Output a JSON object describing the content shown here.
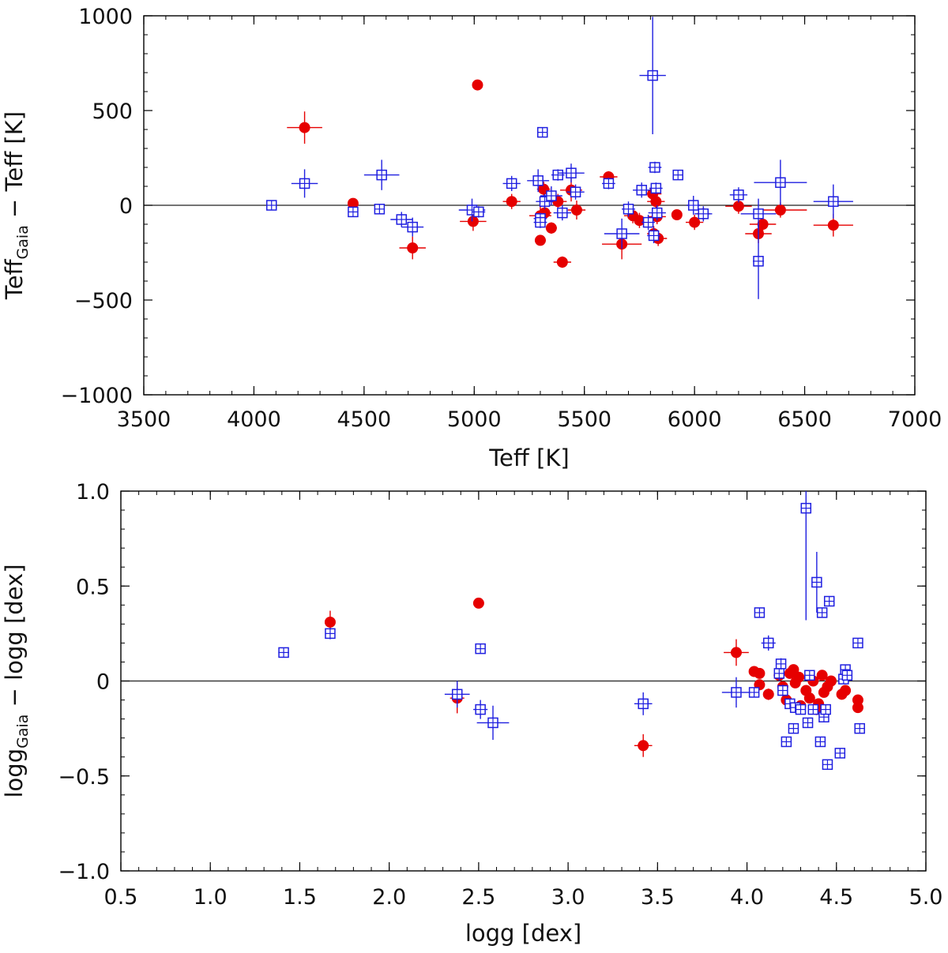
{
  "colors": {
    "red_series": "#e60000",
    "blue_series": "#1f1fe0",
    "axis": "#000000"
  },
  "chart_data": [
    {
      "type": "scatter",
      "xlabel": "Teff  [K]",
      "ylabel_main": "Teff",
      "ylabel_sub": "Gaia",
      "ylabel_tail": " − Teff  [K]",
      "xlim": [
        3500,
        7000
      ],
      "ylim": [
        -1000,
        1000
      ],
      "xticks": [
        3500,
        4000,
        4500,
        5000,
        5500,
        6000,
        6500,
        7000
      ],
      "xtick_labels": [
        "3500",
        "4000",
        "4500",
        "5000",
        "5500",
        "6000",
        "6500",
        "7000"
      ],
      "yticks": [
        -1000,
        -500,
        0,
        500,
        1000
      ],
      "ytick_labels": [
        "−1000",
        "−500",
        "0",
        "500",
        "1000"
      ],
      "x_minor_step": 100,
      "y_minor_step": 100,
      "zero_line": 0,
      "series": [
        {
          "name": "red filled circles",
          "marker": "filled-circle",
          "points": [
            {
              "x": 4230,
              "y": 410,
              "ex": 80,
              "ey": 85
            },
            {
              "x": 5015,
              "y": 635,
              "ex": 15,
              "ey": 15
            },
            {
              "x": 4450,
              "y": 10,
              "ex": 20,
              "ey": 20
            },
            {
              "x": 4720,
              "y": -225,
              "ex": 60,
              "ey": 60
            },
            {
              "x": 4995,
              "y": -85,
              "ex": 60,
              "ey": 50
            },
            {
              "x": 5170,
              "y": 20,
              "ex": 40,
              "ey": 40
            },
            {
              "x": 5300,
              "y": -185,
              "ex": 25,
              "ey": 25
            },
            {
              "x": 5300,
              "y": -55,
              "ex": 50,
              "ey": 50
            },
            {
              "x": 5315,
              "y": 85,
              "ex": 30,
              "ey": 40
            },
            {
              "x": 5320,
              "y": -40,
              "ex": 30,
              "ey": 30
            },
            {
              "x": 5350,
              "y": -120,
              "ex": 25,
              "ey": 30
            },
            {
              "x": 5380,
              "y": 20,
              "ex": 40,
              "ey": 40
            },
            {
              "x": 5400,
              "y": -300,
              "ex": 40,
              "ey": 30
            },
            {
              "x": 5440,
              "y": 80,
              "ex": 50,
              "ey": 60
            },
            {
              "x": 5465,
              "y": -25,
              "ex": 40,
              "ey": 50
            },
            {
              "x": 5610,
              "y": 150,
              "ex": 40,
              "ey": 30
            },
            {
              "x": 5670,
              "y": -205,
              "ex": 90,
              "ey": 80
            },
            {
              "x": 5720,
              "y": -55,
              "ex": 40,
              "ey": 40
            },
            {
              "x": 5750,
              "y": -80,
              "ex": 40,
              "ey": 40
            },
            {
              "x": 5810,
              "y": 60,
              "ex": 40,
              "ey": 40
            },
            {
              "x": 5815,
              "y": -150,
              "ex": 30,
              "ey": 40
            },
            {
              "x": 5825,
              "y": 20,
              "ex": 40,
              "ey": 40
            },
            {
              "x": 5830,
              "y": -60,
              "ex": 40,
              "ey": 40
            },
            {
              "x": 5835,
              "y": -175,
              "ex": 40,
              "ey": 40
            },
            {
              "x": 5920,
              "y": -50,
              "ex": 20,
              "ey": 20
            },
            {
              "x": 6000,
              "y": -90,
              "ex": 40,
              "ey": 40
            },
            {
              "x": 6040,
              "y": -45,
              "ex": 30,
              "ey": 30
            },
            {
              "x": 6200,
              "y": -5,
              "ex": 60,
              "ey": 40
            },
            {
              "x": 6290,
              "y": -150,
              "ex": 60,
              "ey": 50
            },
            {
              "x": 6310,
              "y": -100,
              "ex": 60,
              "ey": 50
            },
            {
              "x": 6390,
              "y": -25,
              "ex": 120,
              "ey": 40
            },
            {
              "x": 6630,
              "y": -105,
              "ex": 90,
              "ey": 60
            }
          ]
        },
        {
          "name": "blue open squares",
          "marker": "open-square",
          "points": [
            {
              "x": 4080,
              "y": 0,
              "ex": 15,
              "ey": 15
            },
            {
              "x": 4230,
              "y": 115,
              "ex": 60,
              "ey": 75
            },
            {
              "x": 4450,
              "y": -35,
              "ex": 20,
              "ey": 20
            },
            {
              "x": 4570,
              "y": -20,
              "ex": 20,
              "ey": 20
            },
            {
              "x": 4580,
              "y": 160,
              "ex": 80,
              "ey": 80
            },
            {
              "x": 4670,
              "y": -75,
              "ex": 50,
              "ey": 40
            },
            {
              "x": 4720,
              "y": -115,
              "ex": 50,
              "ey": 50
            },
            {
              "x": 4990,
              "y": -25,
              "ex": 60,
              "ey": 60
            },
            {
              "x": 5020,
              "y": -35,
              "ex": 30,
              "ey": 30
            },
            {
              "x": 5170,
              "y": 115,
              "ex": 40,
              "ey": 40
            },
            {
              "x": 5290,
              "y": 130,
              "ex": 50,
              "ey": 60
            },
            {
              "x": 5300,
              "y": -70,
              "ex": 30,
              "ey": 30
            },
            {
              "x": 5300,
              "y": -90,
              "ex": 30,
              "ey": 30
            },
            {
              "x": 5310,
              "y": 385,
              "ex": 15,
              "ey": 20
            },
            {
              "x": 5320,
              "y": 20,
              "ex": 40,
              "ey": 40
            },
            {
              "x": 5350,
              "y": 50,
              "ex": 50,
              "ey": 50
            },
            {
              "x": 5380,
              "y": 160,
              "ex": 30,
              "ey": 30
            },
            {
              "x": 5400,
              "y": -40,
              "ex": 40,
              "ey": 40
            },
            {
              "x": 5440,
              "y": 170,
              "ex": 60,
              "ey": 50
            },
            {
              "x": 5460,
              "y": 70,
              "ex": 40,
              "ey": 40
            },
            {
              "x": 5610,
              "y": 115,
              "ex": 30,
              "ey": 30
            },
            {
              "x": 5670,
              "y": -150,
              "ex": 80,
              "ey": 80
            },
            {
              "x": 5700,
              "y": -20,
              "ex": 30,
              "ey": 40
            },
            {
              "x": 5760,
              "y": 80,
              "ex": 40,
              "ey": 40
            },
            {
              "x": 5790,
              "y": -90,
              "ex": 30,
              "ey": 40
            },
            {
              "x": 5810,
              "y": 685,
              "ex": 60,
              "ey": 310
            },
            {
              "x": 5815,
              "y": -160,
              "ex": 30,
              "ey": 40
            },
            {
              "x": 5820,
              "y": 200,
              "ex": 30,
              "ey": 30
            },
            {
              "x": 5825,
              "y": 90,
              "ex": 30,
              "ey": 30
            },
            {
              "x": 5830,
              "y": -40,
              "ex": 40,
              "ey": 40
            },
            {
              "x": 5925,
              "y": 160,
              "ex": 20,
              "ey": 20
            },
            {
              "x": 5995,
              "y": 0,
              "ex": 30,
              "ey": 50
            },
            {
              "x": 6040,
              "y": -45,
              "ex": 40,
              "ey": 40
            },
            {
              "x": 6200,
              "y": 55,
              "ex": 40,
              "ey": 40
            },
            {
              "x": 6290,
              "y": -45,
              "ex": 80,
              "ey": 80
            },
            {
              "x": 6290,
              "y": -295,
              "ex": 25,
              "ey": 200
            },
            {
              "x": 6390,
              "y": 120,
              "ex": 120,
              "ey": 120
            },
            {
              "x": 6630,
              "y": 20,
              "ex": 90,
              "ey": 90
            }
          ]
        }
      ]
    },
    {
      "type": "scatter",
      "xlabel": "logg  [dex]",
      "ylabel_main": "logg",
      "ylabel_sub": "Gaia",
      "ylabel_tail": " − logg  [dex]",
      "xlim": [
        0.5,
        5.0
      ],
      "ylim": [
        -1.0,
        1.0
      ],
      "xticks": [
        0.5,
        1.0,
        1.5,
        2.0,
        2.5,
        3.0,
        3.5,
        4.0,
        4.5,
        5.0
      ],
      "xtick_labels": [
        "0.5",
        "1.0",
        "1.5",
        "2.0",
        "2.5",
        "3.0",
        "3.5",
        "4.0",
        "4.5",
        "5.0"
      ],
      "yticks": [
        -1.0,
        -0.5,
        0,
        0.5,
        1.0
      ],
      "ytick_labels": [
        "−1.0",
        "−0.5",
        "0",
        "0.5",
        "1.0"
      ],
      "x_minor_step": 0.1,
      "y_minor_step": 0.1,
      "zero_line": 0,
      "series": [
        {
          "name": "red filled circles",
          "marker": "filled-circle",
          "points": [
            {
              "x": 1.67,
              "y": 0.31,
              "ex": 0.02,
              "ey": 0.06
            },
            {
              "x": 2.38,
              "y": -0.09,
              "ex": 0.04,
              "ey": 0.08
            },
            {
              "x": 2.5,
              "y": 0.41,
              "ex": 0.02,
              "ey": 0.02
            },
            {
              "x": 3.42,
              "y": -0.34,
              "ex": 0.05,
              "ey": 0.06
            },
            {
              "x": 3.94,
              "y": 0.15,
              "ex": 0.07,
              "ey": 0.07
            },
            {
              "x": 4.04,
              "y": 0.05,
              "ex": 0.02,
              "ey": 0.02
            },
            {
              "x": 4.07,
              "y": 0.04,
              "ex": 0.02,
              "ey": 0.02
            },
            {
              "x": 4.07,
              "y": -0.02,
              "ex": 0.02,
              "ey": 0.02
            },
            {
              "x": 4.12,
              "y": -0.07,
              "ex": 0.03,
              "ey": 0.03
            },
            {
              "x": 4.18,
              "y": 0.03,
              "ex": 0.02,
              "ey": 0.02
            },
            {
              "x": 4.2,
              "y": -0.03,
              "ex": 0.02,
              "ey": 0.02
            },
            {
              "x": 4.22,
              "y": -0.1,
              "ex": 0.02,
              "ey": 0.02
            },
            {
              "x": 4.24,
              "y": 0.04,
              "ex": 0.02,
              "ey": 0.02
            },
            {
              "x": 4.26,
              "y": 0.06,
              "ex": 0.02,
              "ey": 0.02
            },
            {
              "x": 4.27,
              "y": -0.01,
              "ex": 0.02,
              "ey": 0.02
            },
            {
              "x": 4.29,
              "y": 0.02,
              "ex": 0.02,
              "ey": 0.02
            },
            {
              "x": 4.3,
              "y": -0.13,
              "ex": 0.02,
              "ey": 0.02
            },
            {
              "x": 4.33,
              "y": -0.05,
              "ex": 0.02,
              "ey": 0.02
            },
            {
              "x": 4.35,
              "y": -0.09,
              "ex": 0.02,
              "ey": 0.02
            },
            {
              "x": 4.37,
              "y": 0.0,
              "ex": 0.02,
              "ey": 0.02
            },
            {
              "x": 4.39,
              "y": -0.15,
              "ex": 0.02,
              "ey": 0.02
            },
            {
              "x": 4.4,
              "y": -0.12,
              "ex": 0.02,
              "ey": 0.02
            },
            {
              "x": 4.42,
              "y": 0.03,
              "ex": 0.02,
              "ey": 0.02
            },
            {
              "x": 4.43,
              "y": -0.06,
              "ex": 0.02,
              "ey": 0.02
            },
            {
              "x": 4.45,
              "y": -0.03,
              "ex": 0.02,
              "ey": 0.02
            },
            {
              "x": 4.47,
              "y": 0.0,
              "ex": 0.02,
              "ey": 0.02
            },
            {
              "x": 4.53,
              "y": -0.07,
              "ex": 0.02,
              "ey": 0.02
            },
            {
              "x": 4.55,
              "y": -0.05,
              "ex": 0.02,
              "ey": 0.02
            },
            {
              "x": 4.62,
              "y": -0.1,
              "ex": 0.02,
              "ey": 0.02
            },
            {
              "x": 4.62,
              "y": -0.14,
              "ex": 0.02,
              "ey": 0.02
            }
          ]
        },
        {
          "name": "blue open squares",
          "marker": "open-square",
          "points": [
            {
              "x": 1.41,
              "y": 0.15,
              "ex": 0.03,
              "ey": 0.02
            },
            {
              "x": 1.67,
              "y": 0.25,
              "ex": 0.02,
              "ey": 0.03
            },
            {
              "x": 2.38,
              "y": -0.07,
              "ex": 0.07,
              "ey": 0.07
            },
            {
              "x": 2.51,
              "y": 0.17,
              "ex": 0.01,
              "ey": 0.02
            },
            {
              "x": 2.51,
              "y": -0.15,
              "ex": 0.04,
              "ey": 0.05
            },
            {
              "x": 2.58,
              "y": -0.22,
              "ex": 0.09,
              "ey": 0.09
            },
            {
              "x": 3.42,
              "y": -0.12,
              "ex": 0.05,
              "ey": 0.06
            },
            {
              "x": 3.94,
              "y": -0.06,
              "ex": 0.08,
              "ey": 0.08
            },
            {
              "x": 4.04,
              "y": -0.06,
              "ex": 0.02,
              "ey": 0.02
            },
            {
              "x": 4.07,
              "y": 0.36,
              "ex": 0.02,
              "ey": 0.02
            },
            {
              "x": 4.12,
              "y": 0.2,
              "ex": 0.04,
              "ey": 0.04
            },
            {
              "x": 4.18,
              "y": 0.04,
              "ex": 0.02,
              "ey": 0.04
            },
            {
              "x": 4.19,
              "y": 0.09,
              "ex": 0.02,
              "ey": 0.03
            },
            {
              "x": 4.2,
              "y": -0.05,
              "ex": 0.02,
              "ey": 0.03
            },
            {
              "x": 4.22,
              "y": -0.32,
              "ex": 0.02,
              "ey": 0.02
            },
            {
              "x": 4.24,
              "y": -0.12,
              "ex": 0.02,
              "ey": 0.02
            },
            {
              "x": 4.26,
              "y": -0.25,
              "ex": 0.02,
              "ey": 0.02
            },
            {
              "x": 4.27,
              "y": -0.14,
              "ex": 0.02,
              "ey": 0.02
            },
            {
              "x": 4.3,
              "y": -0.15,
              "ex": 0.02,
              "ey": 0.02
            },
            {
              "x": 4.33,
              "y": 0.91,
              "ex": 0.01,
              "ey": 0.59
            },
            {
              "x": 4.34,
              "y": -0.22,
              "ex": 0.02,
              "ey": 0.02
            },
            {
              "x": 4.35,
              "y": 0.03,
              "ex": 0.02,
              "ey": 0.02
            },
            {
              "x": 4.37,
              "y": -0.15,
              "ex": 0.02,
              "ey": 0.02
            },
            {
              "x": 4.39,
              "y": 0.52,
              "ex": 0.02,
              "ey": 0.16
            },
            {
              "x": 4.41,
              "y": -0.32,
              "ex": 0.02,
              "ey": 0.02
            },
            {
              "x": 4.42,
              "y": 0.36,
              "ex": 0.02,
              "ey": 0.02
            },
            {
              "x": 4.43,
              "y": -0.19,
              "ex": 0.02,
              "ey": 0.02
            },
            {
              "x": 4.44,
              "y": -0.15,
              "ex": 0.02,
              "ey": 0.02
            },
            {
              "x": 4.45,
              "y": -0.44,
              "ex": 0.02,
              "ey": 0.02
            },
            {
              "x": 4.46,
              "y": 0.42,
              "ex": 0.02,
              "ey": 0.02
            },
            {
              "x": 4.52,
              "y": -0.38,
              "ex": 0.02,
              "ey": 0.02
            },
            {
              "x": 4.54,
              "y": 0.01,
              "ex": 0.02,
              "ey": 0.02
            },
            {
              "x": 4.55,
              "y": 0.06,
              "ex": 0.02,
              "ey": 0.02
            },
            {
              "x": 4.56,
              "y": 0.03,
              "ex": 0.02,
              "ey": 0.02
            },
            {
              "x": 4.62,
              "y": 0.2,
              "ex": 0.02,
              "ey": 0.02
            },
            {
              "x": 4.63,
              "y": -0.25,
              "ex": 0.02,
              "ey": 0.02
            }
          ]
        }
      ]
    }
  ]
}
